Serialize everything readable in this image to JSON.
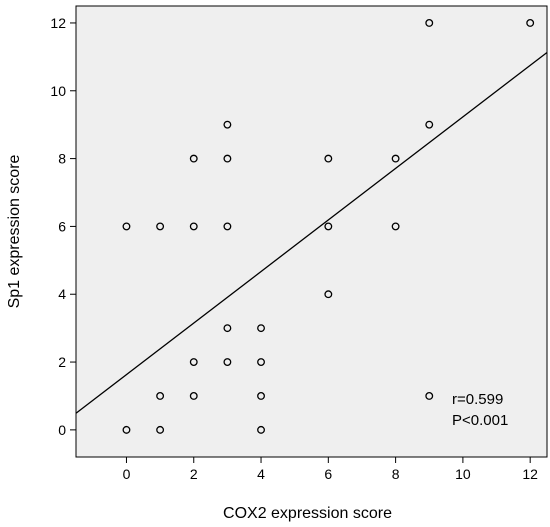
{
  "chart_data": {
    "type": "scatter",
    "title": "",
    "xlabel": "COX2 expression score",
    "ylabel": "Sp1 expression score",
    "xlim": [
      -1.5,
      12.5
    ],
    "ylim": [
      -0.8,
      12.5
    ],
    "xticks": [
      0,
      2,
      4,
      6,
      8,
      10,
      12
    ],
    "yticks": [
      0,
      2,
      4,
      6,
      8,
      10,
      12
    ],
    "grid": false,
    "plot_background": "#efefef",
    "marker": "open-circle",
    "points": [
      {
        "x": 0,
        "y": 0
      },
      {
        "x": 0,
        "y": 6
      },
      {
        "x": 1,
        "y": 0
      },
      {
        "x": 1,
        "y": 1
      },
      {
        "x": 1,
        "y": 6
      },
      {
        "x": 2,
        "y": 1
      },
      {
        "x": 2,
        "y": 2
      },
      {
        "x": 2,
        "y": 6
      },
      {
        "x": 2,
        "y": 8
      },
      {
        "x": 3,
        "y": 2
      },
      {
        "x": 3,
        "y": 3
      },
      {
        "x": 3,
        "y": 6
      },
      {
        "x": 3,
        "y": 8
      },
      {
        "x": 3,
        "y": 9
      },
      {
        "x": 4,
        "y": 0
      },
      {
        "x": 4,
        "y": 1
      },
      {
        "x": 4,
        "y": 2
      },
      {
        "x": 4,
        "y": 3
      },
      {
        "x": 6,
        "y": 4
      },
      {
        "x": 6,
        "y": 6
      },
      {
        "x": 6,
        "y": 8
      },
      {
        "x": 8,
        "y": 6
      },
      {
        "x": 8,
        "y": 8
      },
      {
        "x": 9,
        "y": 1
      },
      {
        "x": 9,
        "y": 9
      },
      {
        "x": 9,
        "y": 12
      },
      {
        "x": 12,
        "y": 12
      }
    ],
    "fit_line": {
      "slope": 0.76,
      "intercept": 1.63
    },
    "annotations": [
      "r=0.599",
      "P<0.001"
    ]
  }
}
